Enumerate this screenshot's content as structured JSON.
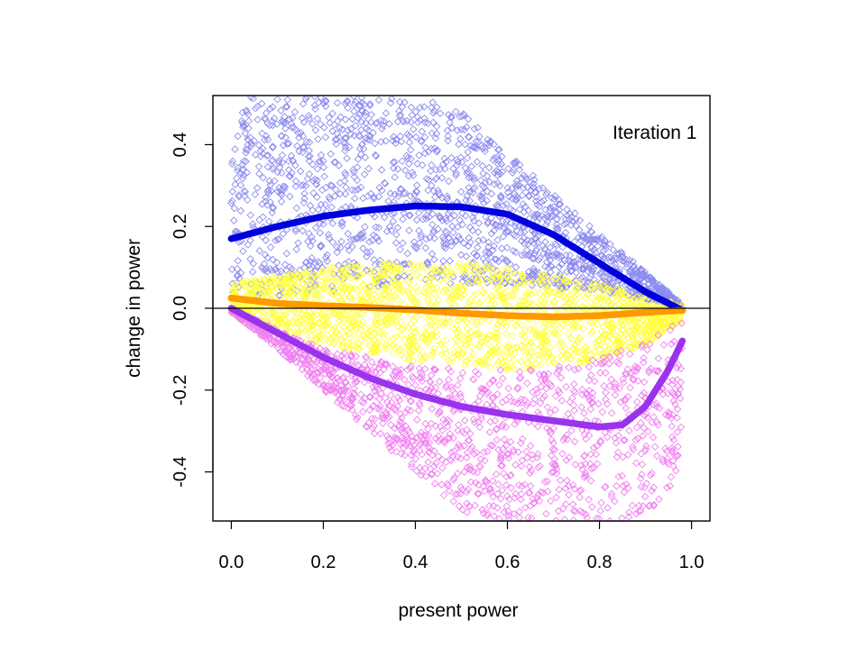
{
  "chart_data": {
    "type": "scatter",
    "title": "",
    "xlabel": "present power",
    "ylabel": "change in power",
    "xlim": [
      -0.04,
      1.04
    ],
    "ylim": [
      -0.52,
      0.52
    ],
    "x_ticks": [
      0.0,
      0.2,
      0.4,
      0.6,
      0.8,
      1.0
    ],
    "x_tick_labels": [
      "0.0",
      "0.2",
      "0.4",
      "0.6",
      "0.8",
      "1.0"
    ],
    "y_ticks": [
      -0.4,
      -0.2,
      0.0,
      0.2,
      0.4
    ],
    "y_tick_labels": [
      "-0.4",
      "-0.2",
      "0.0",
      "0.2",
      "0.4"
    ],
    "grid": false,
    "reference_line_y": 0,
    "annotations": [
      {
        "text": "Iteration 1",
        "x": 0.92,
        "y": 0.43
      }
    ],
    "series": [
      {
        "marker": "open-diamond",
        "color": "#8c8cf0",
        "description_band": "upper",
        "x": [
          0.0,
          0.1,
          0.2,
          0.3,
          0.4,
          0.5,
          0.6,
          0.7,
          0.8,
          0.9,
          0.98
        ],
        "y_lower": [
          0.03,
          0.03,
          0.04,
          0.05,
          0.06,
          0.06,
          0.06,
          0.05,
          0.04,
          0.02,
          0.0
        ],
        "y_upper": [
          0.52,
          0.52,
          0.52,
          0.52,
          0.52,
          0.48,
          0.38,
          0.28,
          0.18,
          0.09,
          0.01
        ]
      },
      {
        "marker": "open-diamond",
        "color": "#ffff40",
        "description_band": "middle",
        "x": [
          0.0,
          0.1,
          0.2,
          0.3,
          0.4,
          0.5,
          0.6,
          0.7,
          0.8,
          0.9,
          0.98
        ],
        "y_lower": [
          -0.02,
          -0.06,
          -0.09,
          -0.11,
          -0.13,
          -0.14,
          -0.15,
          -0.15,
          -0.13,
          -0.09,
          -0.03
        ],
        "y_upper": [
          0.06,
          0.08,
          0.1,
          0.11,
          0.11,
          0.11,
          0.1,
          0.08,
          0.06,
          0.03,
          0.01
        ]
      },
      {
        "marker": "open-diamond",
        "color": "#f080f0",
        "description_band": "lower",
        "x": [
          0.0,
          0.1,
          0.2,
          0.3,
          0.4,
          0.5,
          0.6,
          0.7,
          0.8,
          0.9,
          0.98
        ],
        "y_lower": [
          -0.01,
          -0.1,
          -0.2,
          -0.3,
          -0.4,
          -0.5,
          -0.52,
          -0.52,
          -0.52,
          -0.52,
          -0.4
        ],
        "y_upper": [
          0.0,
          -0.05,
          -0.1,
          -0.12,
          -0.14,
          -0.15,
          -0.15,
          -0.14,
          -0.12,
          -0.08,
          -0.03
        ]
      }
    ],
    "fit_lines": [
      {
        "color": "#0000dd",
        "x": [
          0.0,
          0.1,
          0.2,
          0.3,
          0.4,
          0.5,
          0.6,
          0.7,
          0.8,
          0.9,
          0.98
        ],
        "y": [
          0.17,
          0.2,
          0.225,
          0.24,
          0.25,
          0.248,
          0.23,
          0.18,
          0.11,
          0.04,
          -0.005
        ]
      },
      {
        "color": "#ff9900",
        "x": [
          0.0,
          0.1,
          0.2,
          0.3,
          0.4,
          0.5,
          0.6,
          0.7,
          0.8,
          0.9,
          0.98
        ],
        "y": [
          0.025,
          0.012,
          0.006,
          0.002,
          -0.004,
          -0.012,
          -0.018,
          -0.021,
          -0.018,
          -0.01,
          -0.005
        ]
      },
      {
        "color": "#9933ee",
        "x": [
          0.0,
          0.05,
          0.1,
          0.2,
          0.3,
          0.4,
          0.5,
          0.6,
          0.7,
          0.8,
          0.85,
          0.9,
          0.95,
          0.98
        ],
        "y": [
          0.0,
          -0.03,
          -0.06,
          -0.12,
          -0.17,
          -0.21,
          -0.24,
          -0.26,
          -0.275,
          -0.29,
          -0.285,
          -0.24,
          -0.15,
          -0.08
        ]
      }
    ]
  }
}
